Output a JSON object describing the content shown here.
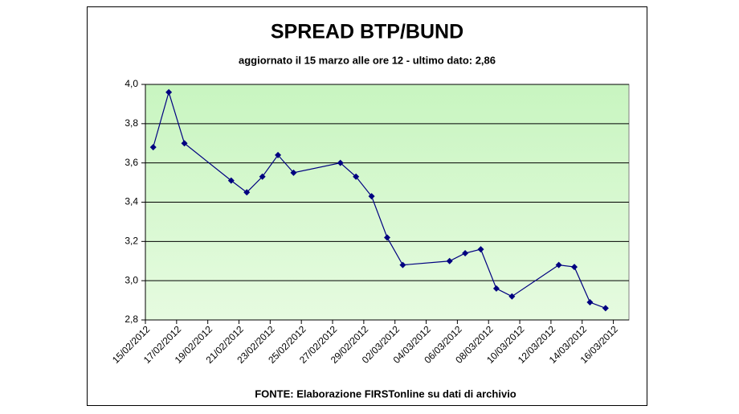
{
  "chart_data": {
    "type": "line",
    "title": "SPREAD BTP/BUND",
    "subtitle": "aggiornato il 15 marzo alle ore 12 - ultimo dato: 2,86",
    "source": "FONTE: Elaborazione FIRSTonline su dati di archivio",
    "x": [
      "15/02/2012",
      "16/02/2012",
      "17/02/2012",
      "20/02/2012",
      "21/02/2012",
      "22/02/2012",
      "23/02/2012",
      "24/02/2012",
      "27/02/2012",
      "28/02/2012",
      "29/02/2012",
      "01/03/2012",
      "02/03/2012",
      "05/03/2012",
      "06/03/2012",
      "07/03/2012",
      "08/03/2012",
      "09/03/2012",
      "12/03/2012",
      "13/03/2012",
      "14/03/2012",
      "15/03/2012"
    ],
    "values": [
      3.68,
      3.96,
      3.7,
      3.51,
      3.45,
      3.53,
      3.64,
      3.55,
      3.6,
      3.53,
      3.43,
      3.22,
      3.08,
      3.1,
      3.14,
      3.16,
      2.96,
      2.92,
      3.08,
      3.07,
      2.89,
      2.86
    ],
    "color": "#000080",
    "xlim": [
      "15/02/2012",
      "17/03/2012"
    ],
    "xticks": [
      "15/02/2012",
      "17/02/2012",
      "19/02/2012",
      "21/02/2012",
      "23/02/2012",
      "25/02/2012",
      "27/02/2012",
      "29/02/2012",
      "02/03/2012",
      "04/03/2012",
      "06/03/2012",
      "08/03/2012",
      "10/03/2012",
      "12/03/2012",
      "14/03/2012",
      "16/03/2012"
    ],
    "ylim": [
      2.8,
      4.0
    ],
    "yticks": [
      {
        "value": 2.8,
        "label": "2,8"
      },
      {
        "value": 3.0,
        "label": "3,0"
      },
      {
        "value": 3.2,
        "label": "3,2"
      },
      {
        "value": 3.4,
        "label": "3,4"
      },
      {
        "value": 3.6,
        "label": "3,6"
      },
      {
        "value": 3.8,
        "label": "3,8"
      },
      {
        "value": 4.0,
        "label": "4,0"
      }
    ],
    "grid": true
  }
}
